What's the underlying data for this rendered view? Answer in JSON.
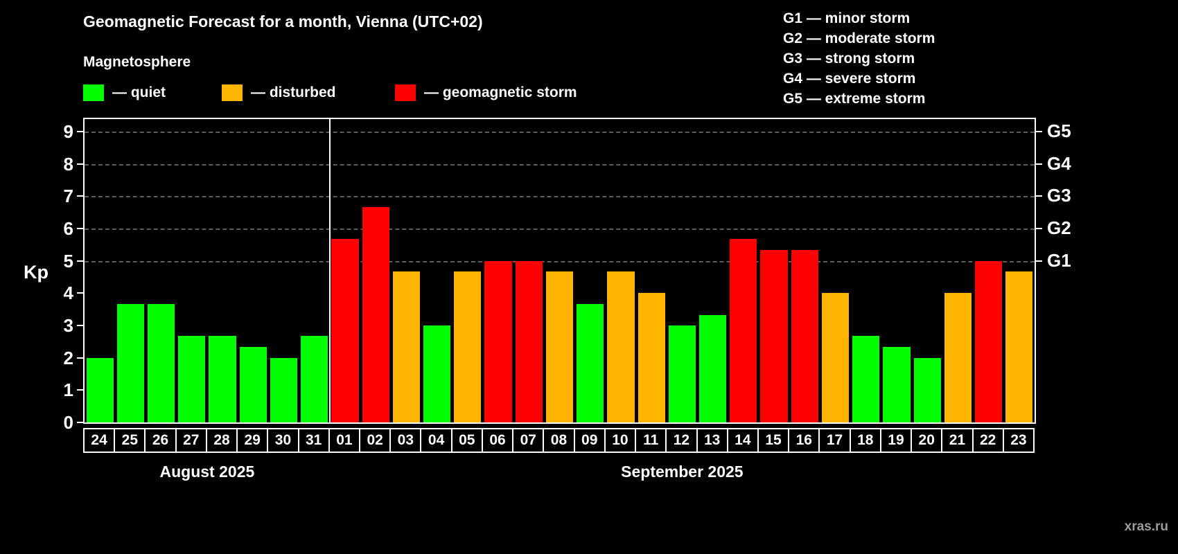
{
  "header": {
    "title": "Geomagnetic Forecast for a month, Vienna (UTC+02)",
    "subtitle": "Magnetosphere"
  },
  "legend": {
    "items": [
      {
        "key": "quiet",
        "label": "— quiet",
        "color": "#00ff00"
      },
      {
        "key": "disturbed",
        "label": "— disturbed",
        "color": "#ffb400"
      },
      {
        "key": "storm",
        "label": "— geomagnetic storm",
        "color": "#ff0000"
      }
    ]
  },
  "storm_scale": {
    "items": [
      {
        "label": "G1 — minor storm"
      },
      {
        "label": "G2 — moderate storm"
      },
      {
        "label": "G3 — strong storm"
      },
      {
        "label": "G4 — severe storm"
      },
      {
        "label": "G5 — extreme storm"
      }
    ]
  },
  "chart_data": {
    "type": "bar",
    "title": "Geomagnetic Forecast for a month, Vienna (UTC+02)",
    "ylabel": "Kp",
    "xlabel": "",
    "ylim": [
      0,
      9
    ],
    "yticks": [
      0,
      1,
      2,
      3,
      4,
      5,
      6,
      7,
      8,
      9
    ],
    "gridlines_at": [
      5,
      6,
      7,
      8,
      9
    ],
    "grid": "dashed-horizontal",
    "legend_position": "top-left",
    "right_axis": [
      {
        "label": "G5",
        "kp": 9
      },
      {
        "label": "G4",
        "kp": 8
      },
      {
        "label": "G3",
        "kp": 7
      },
      {
        "label": "G2",
        "kp": 6
      },
      {
        "label": "G1",
        "kp": 5
      }
    ],
    "status_colors": {
      "quiet": "#00ff00",
      "disturbed": "#ffb400",
      "storm": "#ff0000"
    },
    "months": [
      {
        "label": "August 2025",
        "days": [
          {
            "day": "24",
            "value": 2.0,
            "status": "quiet"
          },
          {
            "day": "25",
            "value": 3.67,
            "status": "quiet"
          },
          {
            "day": "26",
            "value": 3.67,
            "status": "quiet"
          },
          {
            "day": "27",
            "value": 2.67,
            "status": "quiet"
          },
          {
            "day": "28",
            "value": 2.67,
            "status": "quiet"
          },
          {
            "day": "29",
            "value": 2.33,
            "status": "quiet"
          },
          {
            "day": "30",
            "value": 2.0,
            "status": "quiet"
          },
          {
            "day": "31",
            "value": 2.67,
            "status": "quiet"
          }
        ]
      },
      {
        "label": "September 2025",
        "days": [
          {
            "day": "01",
            "value": 5.67,
            "status": "storm"
          },
          {
            "day": "02",
            "value": 6.67,
            "status": "storm"
          },
          {
            "day": "03",
            "value": 4.67,
            "status": "disturbed"
          },
          {
            "day": "04",
            "value": 3.0,
            "status": "quiet"
          },
          {
            "day": "05",
            "value": 4.67,
            "status": "disturbed"
          },
          {
            "day": "06",
            "value": 5.0,
            "status": "storm"
          },
          {
            "day": "07",
            "value": 5.0,
            "status": "storm"
          },
          {
            "day": "08",
            "value": 4.67,
            "status": "disturbed"
          },
          {
            "day": "09",
            "value": 3.67,
            "status": "quiet"
          },
          {
            "day": "10",
            "value": 4.67,
            "status": "disturbed"
          },
          {
            "day": "11",
            "value": 4.0,
            "status": "disturbed"
          },
          {
            "day": "12",
            "value": 3.0,
            "status": "quiet"
          },
          {
            "day": "13",
            "value": 3.33,
            "status": "quiet"
          },
          {
            "day": "14",
            "value": 5.67,
            "status": "storm"
          },
          {
            "day": "15",
            "value": 5.33,
            "status": "storm"
          },
          {
            "day": "16",
            "value": 5.33,
            "status": "storm"
          },
          {
            "day": "17",
            "value": 4.0,
            "status": "disturbed"
          },
          {
            "day": "18",
            "value": 2.67,
            "status": "quiet"
          },
          {
            "day": "19",
            "value": 2.33,
            "status": "quiet"
          },
          {
            "day": "20",
            "value": 2.0,
            "status": "quiet"
          },
          {
            "day": "21",
            "value": 4.0,
            "status": "disturbed"
          },
          {
            "day": "22",
            "value": 5.0,
            "status": "storm"
          },
          {
            "day": "23",
            "value": 4.67,
            "status": "disturbed"
          }
        ]
      }
    ]
  },
  "watermark": "xras.ru"
}
